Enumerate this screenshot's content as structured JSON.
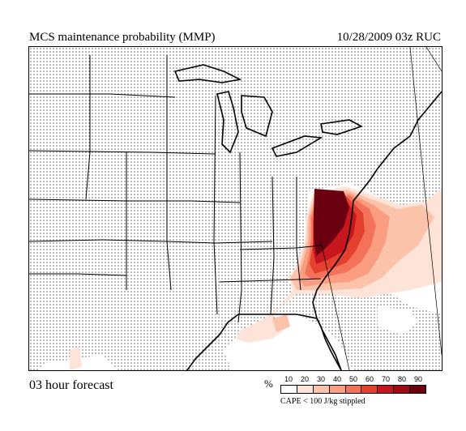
{
  "header": {
    "title": "MCS maintenance probability (MMP)",
    "meta": "10/28/2009  03z  RUC"
  },
  "footer": {
    "forecast": "03 hour forecast",
    "unit": "%",
    "legend_labels": [
      "10",
      "20",
      "30",
      "40",
      "50",
      "60",
      "70",
      "80",
      "90"
    ],
    "legend_colors": [
      "#ffffff",
      "#fde3d8",
      "#fcc3ab",
      "#fa9d81",
      "#f4725a",
      "#e3402f",
      "#c8161f",
      "#a10b16",
      "#6b0010"
    ],
    "note": "CAPE < 100 J/kg stippled"
  },
  "map": {
    "land_color": "#ffffff",
    "stipple_color": "#555555",
    "boundary_color": "#000000"
  }
}
